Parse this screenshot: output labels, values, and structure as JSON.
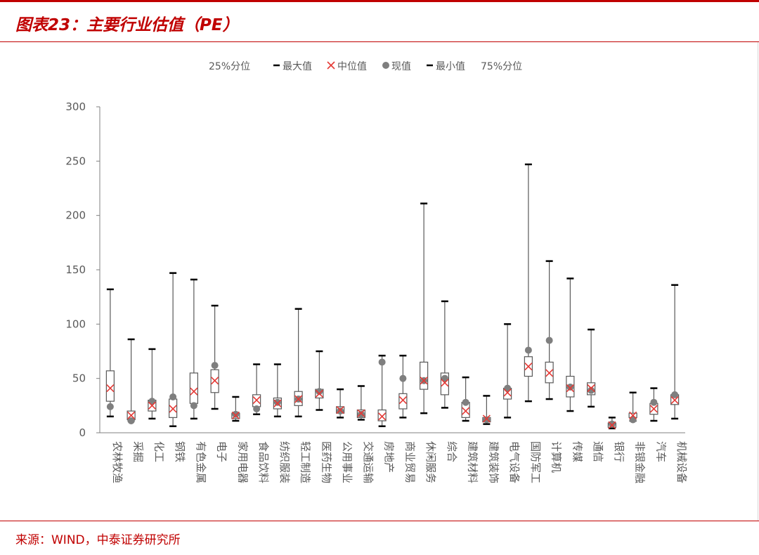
{
  "figure": {
    "title": "图表23：主要行业估值（PE）",
    "source": "来源：WIND，中泰证券研究所"
  },
  "colors": {
    "accent": "#c00000",
    "box": "#595959",
    "median": "#e53935",
    "current": "#7f7f7f",
    "text": "#595959"
  },
  "chart_data": {
    "type": "box",
    "title": "",
    "xlabel": "",
    "ylabel": "",
    "ylim": [
      0,
      300
    ],
    "yticks": [
      0,
      50,
      100,
      150,
      200,
      250,
      300
    ],
    "legend": {
      "position": "top",
      "entries": [
        "25%分位",
        "最大值",
        "中位值",
        "现值",
        "最小值",
        "75%分位"
      ]
    },
    "categories": [
      "农林牧渔",
      "采掘",
      "化工",
      "钢铁",
      "有色金属",
      "电子",
      "家用电器",
      "食品饮料",
      "纺织服装",
      "轻工制造",
      "医药生物",
      "公用事业",
      "交通运输",
      "房地产",
      "商业贸易",
      "休闲服务",
      "综合",
      "建筑材料",
      "建筑装饰",
      "电气设备",
      "国防军工",
      "计算机",
      "传媒",
      "通信",
      "银行",
      "非银金融",
      "汽车",
      "机械设备"
    ],
    "max": [
      132,
      86,
      77,
      147,
      141,
      117,
      33,
      63,
      63,
      114,
      75,
      40,
      43,
      71,
      71,
      211,
      121,
      51,
      34,
      100,
      247,
      158,
      142,
      95,
      14,
      37,
      41,
      136
    ],
    "q75": [
      57,
      20,
      30,
      31,
      55,
      58,
      18,
      35,
      32,
      38,
      40,
      24,
      21,
      21,
      36,
      65,
      55,
      28,
      14,
      41,
      70,
      65,
      52,
      46,
      9,
      18,
      27,
      35
    ],
    "median": [
      41,
      16,
      25,
      22,
      38,
      48,
      16,
      30,
      27,
      31,
      36,
      21,
      18,
      15,
      30,
      48,
      46,
      20,
      13,
      37,
      61,
      55,
      41,
      41,
      7,
      16,
      22,
      30
    ],
    "q25": [
      29,
      12,
      20,
      14,
      27,
      37,
      13,
      24,
      22,
      25,
      32,
      18,
      14,
      11,
      22,
      40,
      35,
      14,
      10,
      31,
      52,
      46,
      33,
      35,
      5,
      14,
      17,
      26
    ],
    "min": [
      15,
      11,
      13,
      6,
      13,
      22,
      11,
      17,
      15,
      15,
      21,
      14,
      12,
      6,
      14,
      18,
      23,
      11,
      8,
      14,
      29,
      31,
      20,
      24,
      4,
      11,
      11,
      13
    ],
    "current": [
      24,
      11,
      29,
      33,
      25,
      62,
      17,
      22,
      28,
      31,
      38,
      20,
      17,
      65,
      50,
      48,
      50,
      28,
      12,
      41,
      76,
      85,
      42,
      39,
      8,
      12,
      28,
      35
    ]
  }
}
